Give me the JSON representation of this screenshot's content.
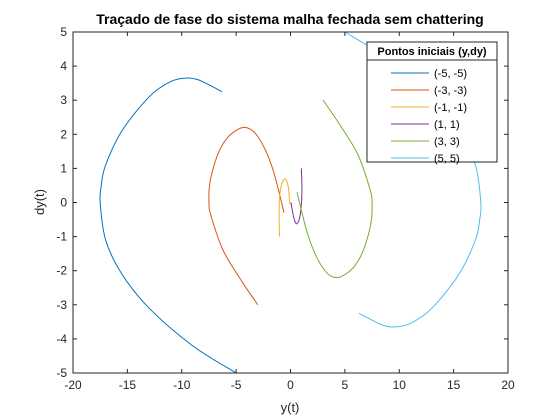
{
  "chart_data": {
    "type": "line",
    "title": "Traçado de fase do sistema malha fechada sem chattering",
    "xlabel": "y(t)",
    "ylabel": "dy(t)",
    "xlim": [
      -20,
      20
    ],
    "ylim": [
      -5,
      5
    ],
    "xticks": [
      "-20",
      "-15",
      "-10",
      "-5",
      "0",
      "5",
      "10",
      "15",
      "20"
    ],
    "yticks": [
      "-5",
      "-4",
      "-3",
      "-2",
      "-1",
      "0",
      "1",
      "2",
      "3",
      "4",
      "5"
    ],
    "grid": false,
    "legend": {
      "title": "Pontos iniciais (y,dy)",
      "placement": "top-right"
    },
    "series": [
      {
        "name": "(-5, -5)",
        "color": "#0072BD",
        "points": [
          [
            -5,
            -5
          ],
          [
            -9,
            -4.2
          ],
          [
            -13,
            -3.1
          ],
          [
            -15.5,
            -2.1
          ],
          [
            -17,
            -1.1
          ],
          [
            -17.5,
            0
          ],
          [
            -17.4,
            0.5
          ],
          [
            -17,
            1.1
          ],
          [
            -15.5,
            2.1
          ],
          [
            -13,
            3.1
          ],
          [
            -11,
            3.55
          ],
          [
            -9.5,
            3.65
          ],
          [
            -8.5,
            3.6
          ],
          [
            -7.5,
            3.45
          ],
          [
            -6.3,
            3.25
          ]
        ]
      },
      {
        "name": "(-3, -3)",
        "color": "#D95319",
        "points": [
          [
            -3,
            -3
          ],
          [
            -4.5,
            -2.3
          ],
          [
            -6.2,
            -1.4
          ],
          [
            -7.3,
            -0.4
          ],
          [
            -7.5,
            0
          ],
          [
            -7.4,
            0.6
          ],
          [
            -6.7,
            1.4
          ],
          [
            -5.8,
            1.9
          ],
          [
            -4.8,
            2.15
          ],
          [
            -4.1,
            2.2
          ],
          [
            -3.3,
            2.05
          ],
          [
            -2.4,
            1.6
          ],
          [
            -1.6,
            0.95
          ],
          [
            -0.9,
            0.1
          ],
          [
            -0.6,
            -0.3
          ]
        ]
      },
      {
        "name": "(-1, -1)",
        "color": "#EDB120",
        "points": [
          [
            -1,
            -1
          ],
          [
            -1.05,
            -0.5
          ],
          [
            -1,
            0.2
          ],
          [
            -0.75,
            0.6
          ],
          [
            -0.45,
            0.68
          ],
          [
            -0.2,
            0.45
          ],
          [
            -0.1,
            0.1
          ],
          [
            -0.05,
            -0.05
          ]
        ]
      },
      {
        "name": "(1, 1)",
        "color": "#7E2F8E",
        "points": [
          [
            1,
            1
          ],
          [
            1.05,
            0.3
          ],
          [
            0.9,
            -0.35
          ],
          [
            0.6,
            -0.62
          ],
          [
            0.35,
            -0.5
          ],
          [
            0.15,
            -0.2
          ],
          [
            0.05,
            0
          ]
        ]
      },
      {
        "name": "(3, 3)",
        "color": "#77AC30",
        "points": [
          [
            3,
            3
          ],
          [
            4.5,
            2.3
          ],
          [
            6.2,
            1.4
          ],
          [
            7.3,
            0.4
          ],
          [
            7.5,
            0
          ],
          [
            7.4,
            -0.6
          ],
          [
            6.7,
            -1.4
          ],
          [
            5.8,
            -1.9
          ],
          [
            4.8,
            -2.15
          ],
          [
            4.1,
            -2.2
          ],
          [
            3.3,
            -2.05
          ],
          [
            2.4,
            -1.6
          ],
          [
            1.6,
            -0.95
          ],
          [
            0.9,
            -0.1
          ],
          [
            0.6,
            0.3
          ]
        ]
      },
      {
        "name": "(5, 5)",
        "color": "#4DBEEE",
        "points": [
          [
            5,
            5
          ],
          [
            9,
            4.2
          ],
          [
            13,
            3.1
          ],
          [
            15.5,
            2.1
          ],
          [
            17,
            1.1
          ],
          [
            17.5,
            0
          ],
          [
            17.4,
            -0.5
          ],
          [
            17,
            -1.1
          ],
          [
            15.5,
            -2.1
          ],
          [
            13,
            -3.1
          ],
          [
            11,
            -3.55
          ],
          [
            9.5,
            -3.65
          ],
          [
            8.5,
            -3.6
          ],
          [
            7.5,
            -3.45
          ],
          [
            6.3,
            -3.25
          ]
        ]
      }
    ]
  }
}
